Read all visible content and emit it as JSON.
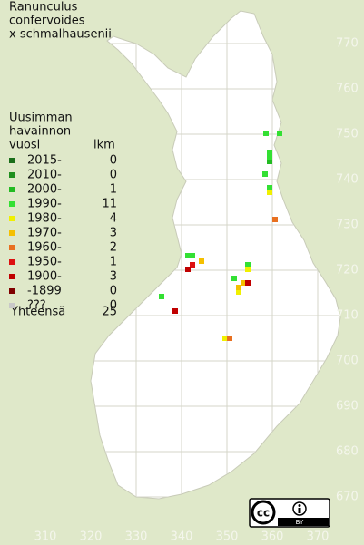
{
  "title": [
    "Ranunculus",
    "confervoides",
    "x schmalhausenii"
  ],
  "legend": {
    "header": [
      "Uusimman",
      "havainnon",
      "vuosi"
    ],
    "count_header": "lkm",
    "entries": [
      {
        "label": "2015-",
        "count": 0,
        "color": "#1a6e1a",
        "points": []
      },
      {
        "label": "2010-",
        "count": 0,
        "color": "#1f8f1f",
        "points": []
      },
      {
        "label": "2000-",
        "count": 1,
        "color": "#22bb22",
        "points": [
          [
            359.4,
            744
          ]
        ]
      },
      {
        "label": "1990-",
        "count": 11,
        "color": "#33e033",
        "points": [
          [
            358.6,
            750.2
          ],
          [
            361.6,
            750.2
          ],
          [
            359.4,
            746
          ],
          [
            359.4,
            745
          ],
          [
            358.4,
            741.2
          ],
          [
            359.4,
            738.2
          ],
          [
            341.4,
            723.2
          ],
          [
            342.4,
            723.2
          ],
          [
            354.6,
            721.2
          ],
          [
            351.6,
            718.2
          ],
          [
            335.6,
            714.2
          ]
        ]
      },
      {
        "label": "1980-",
        "count": 4,
        "color": "#f0f000",
        "points": [
          [
            359.4,
            737.2
          ],
          [
            354.6,
            720.2
          ],
          [
            352.6,
            715.2
          ],
          [
            349.6,
            705
          ]
        ]
      },
      {
        "label": "1970-",
        "count": 3,
        "color": "#f5c000",
        "points": [
          [
            344.4,
            722
          ],
          [
            353.6,
            717.2
          ],
          [
            352.6,
            716.2
          ]
        ]
      },
      {
        "label": "1960-",
        "count": 2,
        "color": "#e87020",
        "points": [
          [
            360.6,
            731.2
          ],
          [
            350.6,
            705
          ]
        ]
      },
      {
        "label": "1950-",
        "count": 1,
        "color": "#dd1010",
        "points": [
          [
            342.4,
            721.2
          ]
        ]
      },
      {
        "label": "1900-",
        "count": 3,
        "color": "#c00000",
        "points": [
          [
            341.4,
            720.2
          ],
          [
            354.6,
            717.2
          ],
          [
            338.6,
            711
          ]
        ]
      },
      {
        "label": "-1899",
        "count": 0,
        "color": "#800000",
        "points": []
      },
      {
        "label": "???",
        "count": 0,
        "color": "#c8c8c8",
        "points": []
      }
    ],
    "total_label": "Yhteensä",
    "total": 25
  },
  "x_ticks": [
    310,
    320,
    330,
    340,
    350,
    360,
    370
  ],
  "y_ticks": [
    670,
    680,
    690,
    700,
    710,
    720,
    730,
    740,
    750,
    760,
    770
  ],
  "license": {
    "cc": "cc",
    "by": "BY"
  }
}
